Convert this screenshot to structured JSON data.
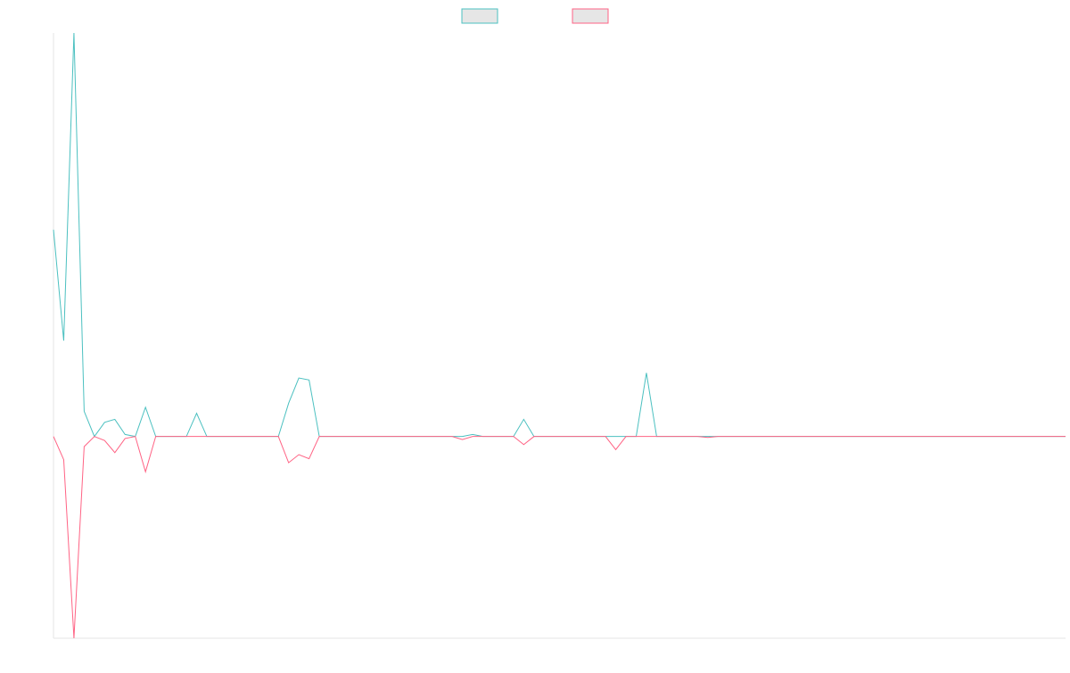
{
  "chart_data": {
    "type": "line",
    "title": "",
    "xlabel": "",
    "ylabel": "",
    "grid": false,
    "legend": "top-center",
    "x": [
      0,
      1,
      2,
      3,
      4,
      5,
      6,
      7,
      8,
      9,
      10,
      11,
      12,
      13,
      14,
      15,
      16,
      17,
      18,
      19,
      20,
      21,
      22,
      23,
      24,
      25,
      26,
      27,
      28,
      29,
      30,
      31,
      32,
      33,
      34,
      35,
      36,
      37,
      38,
      39,
      40,
      41,
      42,
      43,
      44,
      45,
      46,
      47,
      48,
      49,
      50,
      51,
      52,
      53,
      54,
      55,
      56,
      57,
      58,
      59,
      60,
      61,
      62,
      63,
      64,
      65,
      66,
      67,
      68,
      69,
      70,
      71,
      72,
      73,
      74,
      75,
      76,
      77,
      78,
      79,
      80,
      81,
      82,
      83,
      84,
      85,
      86,
      87,
      88,
      89,
      90,
      91,
      92,
      93,
      94,
      95,
      96,
      97,
      98,
      99
    ],
    "xlim": [
      0,
      99
    ],
    "ylim": [
      -100,
      200
    ],
    "series": [
      {
        "color": "#4bc0c0",
        "values": [
          102.5,
          47.5,
          200,
          12.5,
          0,
          7,
          8.5,
          1,
          0,
          14.5,
          0,
          0,
          0,
          0,
          11.5,
          0,
          0,
          0,
          0,
          0,
          0,
          0,
          0,
          16.5,
          29,
          28,
          0,
          0,
          0,
          0,
          0,
          0,
          0,
          0,
          0,
          0,
          0,
          0,
          0,
          0,
          0,
          1,
          0,
          0,
          0,
          0,
          8.5,
          0,
          0,
          0,
          0,
          0,
          0,
          0,
          0,
          0,
          0,
          0,
          31.5,
          0,
          0,
          0,
          0,
          0,
          0,
          0,
          0,
          0,
          0,
          0,
          0,
          0,
          0,
          0,
          0,
          0,
          0,
          0,
          0,
          0,
          0,
          0,
          0,
          0,
          0,
          0,
          0,
          0,
          0,
          0,
          0,
          0,
          0,
          0,
          0,
          0,
          0,
          0,
          0,
          0
        ]
      },
      {
        "color": "#ff6384",
        "values": [
          0,
          -11.5,
          -100,
          -5,
          0,
          -2,
          -8,
          -1,
          0,
          -17.5,
          0,
          0,
          0,
          0,
          0,
          0,
          0,
          0,
          0,
          0,
          0,
          0,
          0,
          -13,
          -9,
          -11,
          0,
          0,
          0,
          0,
          0,
          0,
          0,
          0,
          0,
          0,
          0,
          0,
          0,
          0,
          -1.5,
          0,
          0,
          0,
          0,
          0,
          -4,
          0,
          0,
          0,
          0,
          0,
          0,
          0,
          0,
          -6.5,
          0,
          0,
          0,
          0,
          0,
          0,
          0,
          0,
          -0.5,
          0,
          0,
          0,
          0,
          0,
          0,
          0,
          0,
          0,
          0,
          0,
          0,
          0,
          0,
          0,
          0,
          0,
          0,
          0,
          0,
          0,
          0,
          0,
          0,
          0,
          0,
          0,
          0,
          0,
          0,
          0,
          0,
          0,
          0,
          0
        ]
      }
    ]
  }
}
